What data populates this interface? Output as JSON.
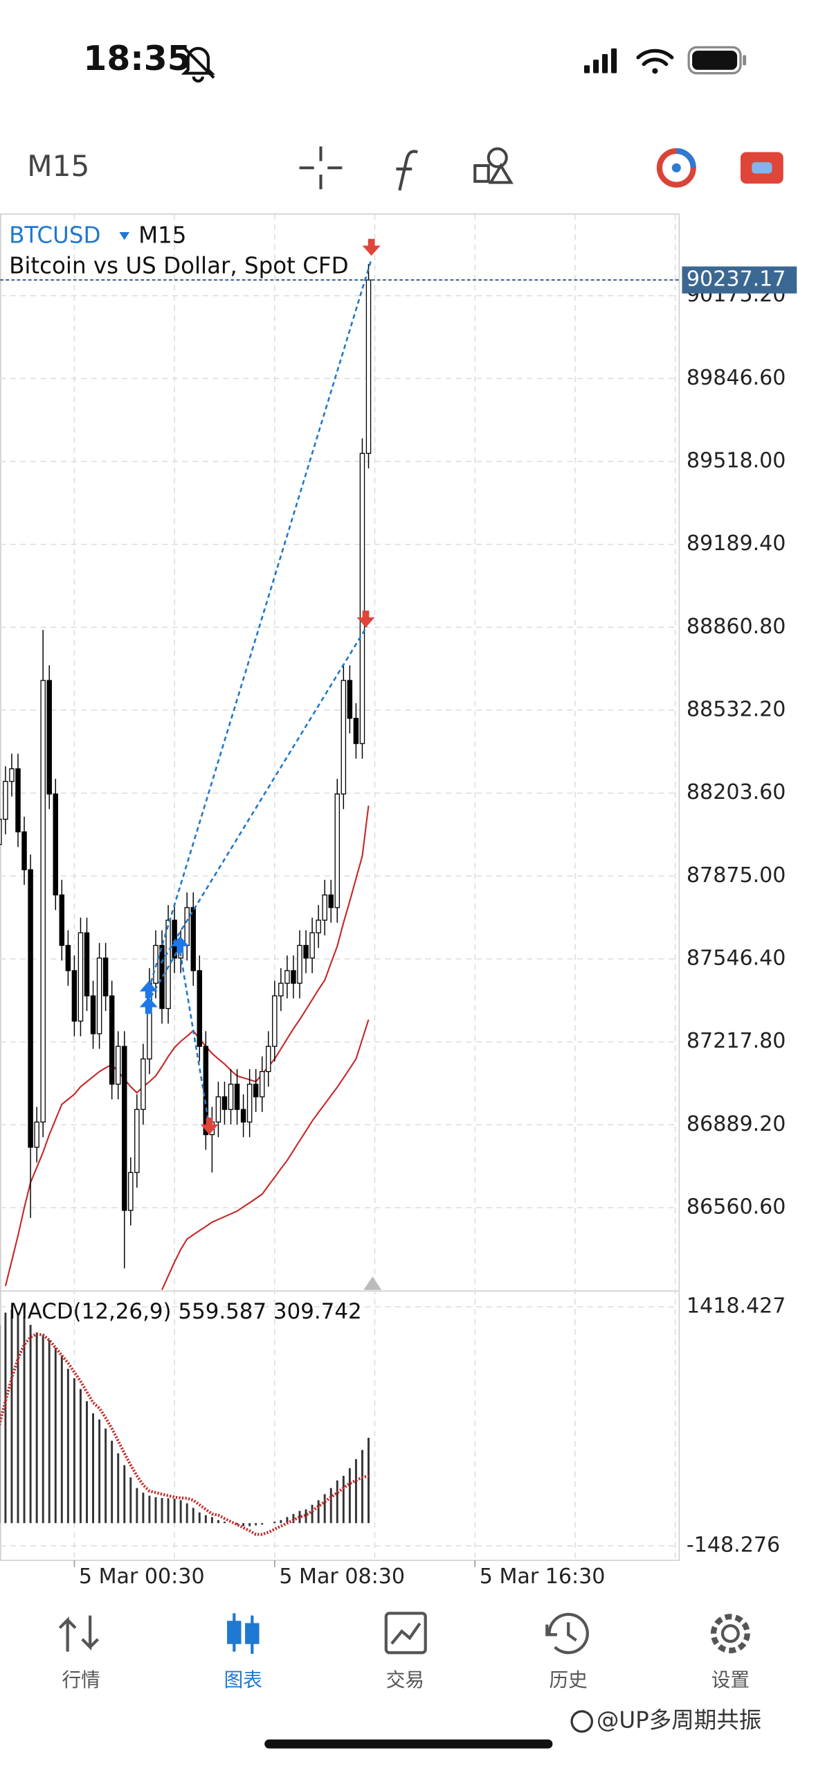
{
  "status_bar": {
    "time": "18:35"
  },
  "toolbar": {
    "timeframe": "M15"
  },
  "chart_data": [
    {
      "type": "candlestick",
      "symbol": "BTCUSD",
      "timeframe": "M15",
      "title": "Bitcoin vs US Dollar, Spot CFD",
      "open": [
        88000,
        88100,
        88250,
        88300,
        88050,
        87900,
        86800,
        86900,
        88650,
        88200,
        87800,
        87600,
        87500,
        87300,
        87650,
        87400,
        87250,
        87550,
        87400,
        87050,
        87200,
        86550,
        86700,
        86950,
        87150,
        87450,
        87600,
        87350,
        87700,
        87550,
        87600,
        87750,
        87500,
        87200,
        86850,
        86900,
        87000,
        86950,
        87050,
        86950,
        86900,
        87050,
        87000,
        87100,
        87200,
        87400,
        87450,
        87500,
        87450,
        87600,
        87550,
        87650,
        87700,
        87800,
        87750,
        88200,
        88650,
        88500,
        88400,
        89550
      ],
      "high": [
        88160,
        88310,
        88360,
        88360,
        88110,
        87960,
        86960,
        88850,
        88710,
        88260,
        87860,
        87660,
        87560,
        87710,
        87710,
        87460,
        87610,
        87610,
        87460,
        87260,
        87260,
        86760,
        87010,
        87210,
        87510,
        87660,
        87660,
        87760,
        87760,
        87660,
        87810,
        87810,
        87560,
        87260,
        86960,
        87060,
        87060,
        87110,
        87110,
        87010,
        87110,
        87110,
        87160,
        87260,
        87460,
        87510,
        87560,
        87560,
        87660,
        87660,
        87710,
        87760,
        87860,
        87860,
        88260,
        88710,
        88710,
        88560,
        89610,
        90300
      ],
      "low": [
        87940,
        88040,
        88190,
        87990,
        87840,
        86520,
        86740,
        86840,
        88140,
        87740,
        87540,
        87440,
        87240,
        87240,
        87340,
        87190,
        87190,
        87340,
        86990,
        86990,
        86320,
        86490,
        86640,
        86890,
        87090,
        87390,
        87290,
        87290,
        87490,
        87490,
        87540,
        87440,
        87140,
        86790,
        86700,
        86840,
        86890,
        86890,
        86890,
        86840,
        86840,
        86940,
        86940,
        87040,
        87140,
        87340,
        87390,
        87390,
        87390,
        87490,
        87490,
        87590,
        87640,
        87690,
        87690,
        88140,
        88440,
        88340,
        88340,
        89490
      ],
      "close": [
        88100,
        88250,
        88300,
        88050,
        87900,
        86800,
        86900,
        88650,
        88200,
        87800,
        87600,
        87500,
        87300,
        87650,
        87400,
        87250,
        87550,
        87400,
        87050,
        87200,
        86550,
        86700,
        86950,
        87150,
        87450,
        87600,
        87350,
        87700,
        87550,
        87600,
        87750,
        87500,
        87200,
        86850,
        86900,
        87000,
        86950,
        87050,
        86950,
        86900,
        87050,
        87000,
        87100,
        87200,
        87400,
        87450,
        87500,
        87450,
        87600,
        87550,
        87650,
        87700,
        87800,
        87750,
        88200,
        88650,
        88500,
        88400,
        89550,
        90237.17
      ],
      "up_color": "#ffffff",
      "down_color": "#000000",
      "series": [
        {
          "color": "#c62828",
          "values": [
            null,
            86250,
            86350,
            86450,
            86560,
            86660,
            86720,
            86780,
            86850,
            86910,
            86970,
            86990,
            87010,
            87040,
            87060,
            87080,
            87100,
            87115,
            87127,
            87100,
            87070,
            87040,
            87016,
            87040,
            87060,
            87083,
            87120,
            87160,
            87195,
            87220,
            87240,
            87262,
            87230,
            87200,
            87172,
            87150,
            87130,
            87105,
            87083,
            87075,
            87068,
            87060,
            87090,
            87120,
            87150,
            87190,
            87230,
            87270,
            87306,
            87345,
            87385,
            87425,
            87462,
            87530,
            87597,
            87690,
            87775,
            87865,
            87954,
            88154
          ]
        },
        {
          "color": "#c62828",
          "values": [
            null,
            null,
            null,
            null,
            null,
            null,
            null,
            null,
            null,
            null,
            null,
            null,
            null,
            null,
            null,
            null,
            null,
            null,
            null,
            null,
            null,
            null,
            null,
            null,
            null,
            null,
            86235,
            86290,
            86345,
            86395,
            86436,
            86453,
            86470,
            86486,
            86503,
            86514,
            86525,
            86536,
            86547,
            86564,
            86580,
            86597,
            86614,
            86648,
            86681,
            86715,
            86748,
            86787,
            86826,
            86865,
            86904,
            86938,
            86971,
            87005,
            87038,
            87075,
            87112,
            87150,
            87228,
            87306
          ]
        }
      ],
      "ylim": [
        86234.6,
        90498.4
      ],
      "yticks": [
        {
          "value": 90175.2,
          "label": "90175.20"
        },
        {
          "value": 89846.6,
          "label": "89846.60"
        },
        {
          "value": 89518,
          "label": "89518.00"
        },
        {
          "value": 89189.4,
          "label": "89189.40"
        },
        {
          "value": 88860.8,
          "label": "88860.80"
        },
        {
          "value": 88532.2,
          "label": "88532.20"
        },
        {
          "value": 88203.6,
          "label": "88203.60"
        },
        {
          "value": 87875,
          "label": "87875.00"
        },
        {
          "value": 87546.4,
          "label": "87546.40"
        },
        {
          "value": 87217.8,
          "label": "87217.80"
        },
        {
          "value": 86889.2,
          "label": "86889.20"
        },
        {
          "value": 86560.6,
          "label": "86560.60"
        }
      ],
      "xticks": [
        {
          "value": 12,
          "label": "5 Mar 00:30"
        },
        {
          "value": 44,
          "label": "5 Mar 08:30"
        },
        {
          "value": 76,
          "label": "5 Mar 16:30"
        }
      ],
      "grid": true
    },
    {
      "type": "macd",
      "title": "MACD(12,26,9)",
      "series": [
        {
          "color": "#333333",
          "values": [
            1300,
            1380,
            1400,
            1380,
            1350,
            1300,
            1250,
            1234,
            1200,
            1150,
            1100,
            1012,
            950,
            880,
            800,
            720,
            680,
            620,
            540,
            458,
            380,
            300,
            230,
            200,
            180,
            170,
            165,
            163,
            160,
            150,
            130,
            100,
            70,
            52,
            40,
            20,
            10,
            0,
            -10,
            -20,
            -20,
            -15,
            -10,
            0,
            10,
            20,
            40,
            60,
            80,
            90,
            120,
            150,
            190,
            230,
            280,
            310,
            360,
            420,
            480,
            559.587
          ]
        },
        {
          "color": "#c62828",
          "values": [
            643,
            800,
            950,
            1080,
            1170,
            1220,
            1240,
            1234,
            1200,
            1150,
            1100,
            1050,
            990,
            930,
            860,
            790,
            754,
            690,
            620,
            540,
            458,
            380,
            310,
            250,
            210,
            200,
            190,
            180,
            170,
            165,
            163,
            150,
            120,
            90,
            60,
            52,
            30,
            10,
            -10,
            -30,
            -50,
            -74,
            -74,
            -60,
            -40,
            -20,
            0,
            20,
            40,
            52,
            80,
            110,
            140,
            170,
            200,
            230,
            260,
            280,
            300,
            309.742
          ]
        }
      ],
      "ylim": [
        -244,
        1507
      ],
      "yticks": [
        1418.427,
        -148.276
      ],
      "grid": true
    }
  ],
  "nav": {
    "items": [
      "行情",
      "图表",
      "交易",
      "历史",
      "设置"
    ],
    "active": 1
  },
  "watermark": "@UP多周期共振"
}
